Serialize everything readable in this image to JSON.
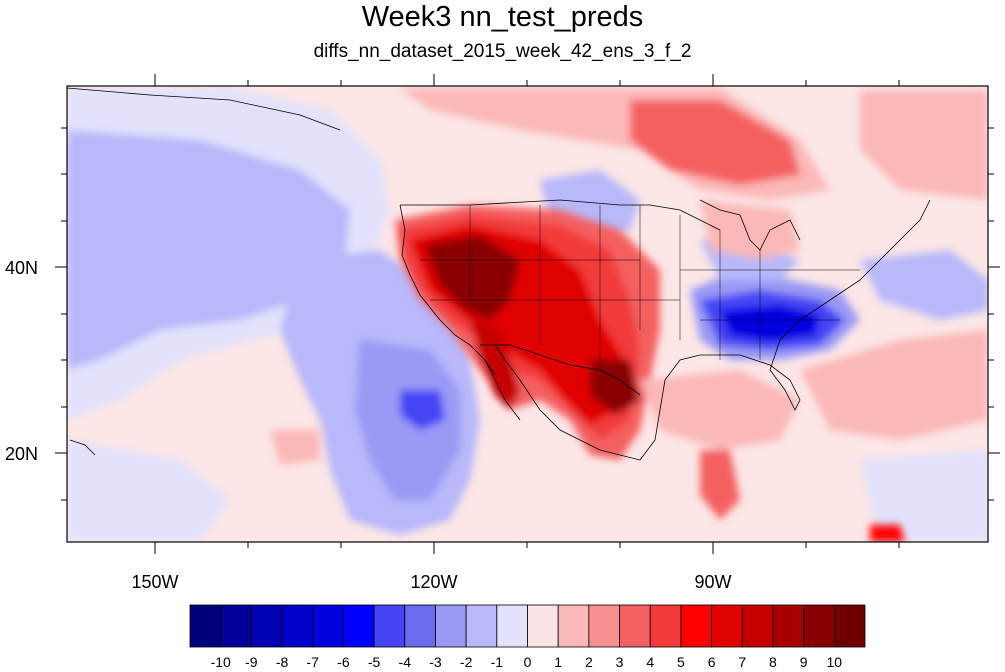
{
  "title": "Week3 nn_test_preds",
  "subtitle": "diffs_nn_dataset_2015_week_42_ens_3_f_2",
  "axes": {
    "x_ticks": [
      {
        "label": "150W",
        "lon": -150
      },
      {
        "label": "120W",
        "lon": -120
      },
      {
        "label": "90W",
        "lon": -90
      }
    ],
    "y_ticks": [
      {
        "label": "40N",
        "lat": 40
      },
      {
        "label": "20N",
        "lat": 20
      }
    ],
    "lon_range": [
      -159.4,
      -59
    ],
    "lat_range": [
      11,
      60
    ]
  },
  "colorbar": {
    "labels": [
      "-10",
      "-9",
      "-8",
      "-7",
      "-6",
      "-5",
      "-4",
      "-3",
      "-2",
      "-1",
      "0",
      "1",
      "2",
      "3",
      "4",
      "5",
      "6",
      "7",
      "8",
      "9",
      "10"
    ],
    "colors": [
      "#00007a",
      "#000099",
      "#0000b3",
      "#0000cc",
      "#0000e0",
      "#0000ff",
      "#4444f5",
      "#6b6bf0",
      "#9a9af5",
      "#b8b8fa",
      "#e2e2fc",
      "#fde4e4",
      "#fbb8b8",
      "#f79191",
      "#f46060",
      "#f23a3a",
      "#ff0000",
      "#e00000",
      "#c40000",
      "#a80000",
      "#8a0000",
      "#6e0000"
    ]
  },
  "map": {
    "background_color": "#fce6e6",
    "anomaly_colors": {
      "neg_light": "#e2e2fc",
      "neg_mid": "#b8b8fa",
      "neg_strong": "#6b6bf0",
      "neg_deep": "#2222e0",
      "pos_light": "#fbb8b8",
      "pos_mid": "#f46060",
      "pos_strong": "#e00000",
      "pos_deep": "#8a0000"
    }
  }
}
